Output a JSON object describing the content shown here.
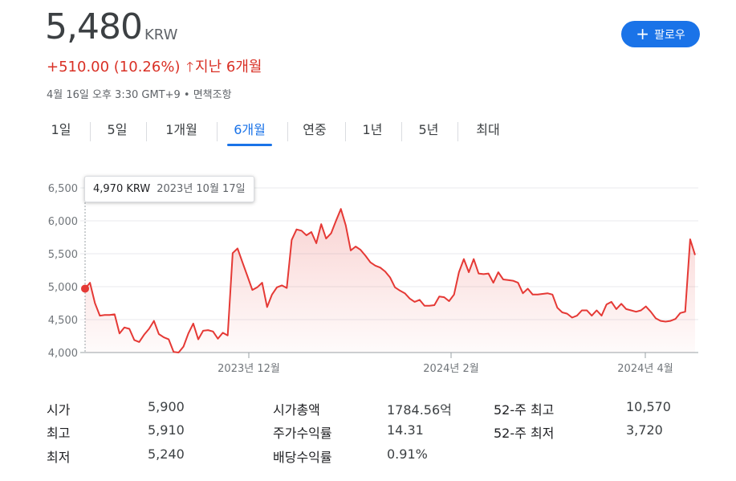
{
  "quote": {
    "price": "5,480",
    "currency": "KRW",
    "change": "+510.00 (10.26%)",
    "period_label": "지난 6개월",
    "timestamp": "4월 16일 오후 3:30 GMT+9 • 면책조항"
  },
  "follow_button": {
    "label": "팔로우"
  },
  "range_tabs": [
    {
      "label": "1일",
      "active": false
    },
    {
      "label": "5일",
      "active": false
    },
    {
      "label": "1개월",
      "active": false
    },
    {
      "label": "6개월",
      "active": true
    },
    {
      "label": "연중",
      "active": false
    },
    {
      "label": "1년",
      "active": false
    },
    {
      "label": "5년",
      "active": false
    },
    {
      "label": "최대",
      "active": false
    }
  ],
  "tooltip": {
    "value": "4,970 KRW",
    "date": "2023년 10월 17일"
  },
  "colors": {
    "line": "#e53935",
    "accent": "#1a73e8",
    "down": "#d93025"
  },
  "chart_data": {
    "type": "area",
    "y_tick_labels": [
      "4,000",
      "4,500",
      "5,000",
      "5,500",
      "6,000",
      "6,500"
    ],
    "y_ticks": [
      4000,
      4500,
      5000,
      5500,
      6000,
      6500
    ],
    "ylim": [
      4000,
      6500
    ],
    "x_tick_labels": [
      "2023년 12월",
      "2024년 2월",
      "2024년 4월"
    ],
    "grid": true,
    "highlight_index": 0,
    "values": [
      4970,
      5060,
      4750,
      4560,
      4570,
      4570,
      4580,
      4290,
      4380,
      4360,
      4190,
      4160,
      4270,
      4360,
      4480,
      4280,
      4230,
      4200,
      4010,
      4000,
      4090,
      4290,
      4440,
      4200,
      4330,
      4340,
      4320,
      4210,
      4300,
      4260,
      5510,
      5580,
      5370,
      5160,
      4950,
      4990,
      5060,
      4690,
      4880,
      4990,
      5020,
      4980,
      5710,
      5870,
      5850,
      5780,
      5830,
      5660,
      5950,
      5730,
      5810,
      6000,
      6180,
      5930,
      5550,
      5610,
      5560,
      5470,
      5370,
      5320,
      5290,
      5230,
      5140,
      4990,
      4940,
      4900,
      4820,
      4770,
      4800,
      4710,
      4710,
      4720,
      4850,
      4840,
      4780,
      4880,
      5220,
      5420,
      5220,
      5420,
      5200,
      5190,
      5200,
      5060,
      5220,
      5110,
      5100,
      5090,
      5060,
      4900,
      4970,
      4880,
      4880,
      4890,
      4900,
      4880,
      4680,
      4610,
      4590,
      4530,
      4560,
      4640,
      4640,
      4560,
      4640,
      4560,
      4730,
      4770,
      4660,
      4740,
      4660,
      4640,
      4620,
      4640,
      4700,
      4620,
      4520,
      4480,
      4470,
      4480,
      4510,
      4600,
      4620,
      5720,
      5480
    ]
  },
  "stats": [
    {
      "label": "시가",
      "value": "5,900"
    },
    {
      "label": "최고",
      "value": "5,910"
    },
    {
      "label": "최저",
      "value": "5,240"
    },
    {
      "label": "시가총액",
      "value": "1784.56억"
    },
    {
      "label": "주가수익률",
      "value": "14.31"
    },
    {
      "label": "배당수익률",
      "value": "0.91%"
    },
    {
      "label": "52-주 최고",
      "value": "10,570"
    },
    {
      "label": "52-주 최저",
      "value": "3,720"
    }
  ]
}
